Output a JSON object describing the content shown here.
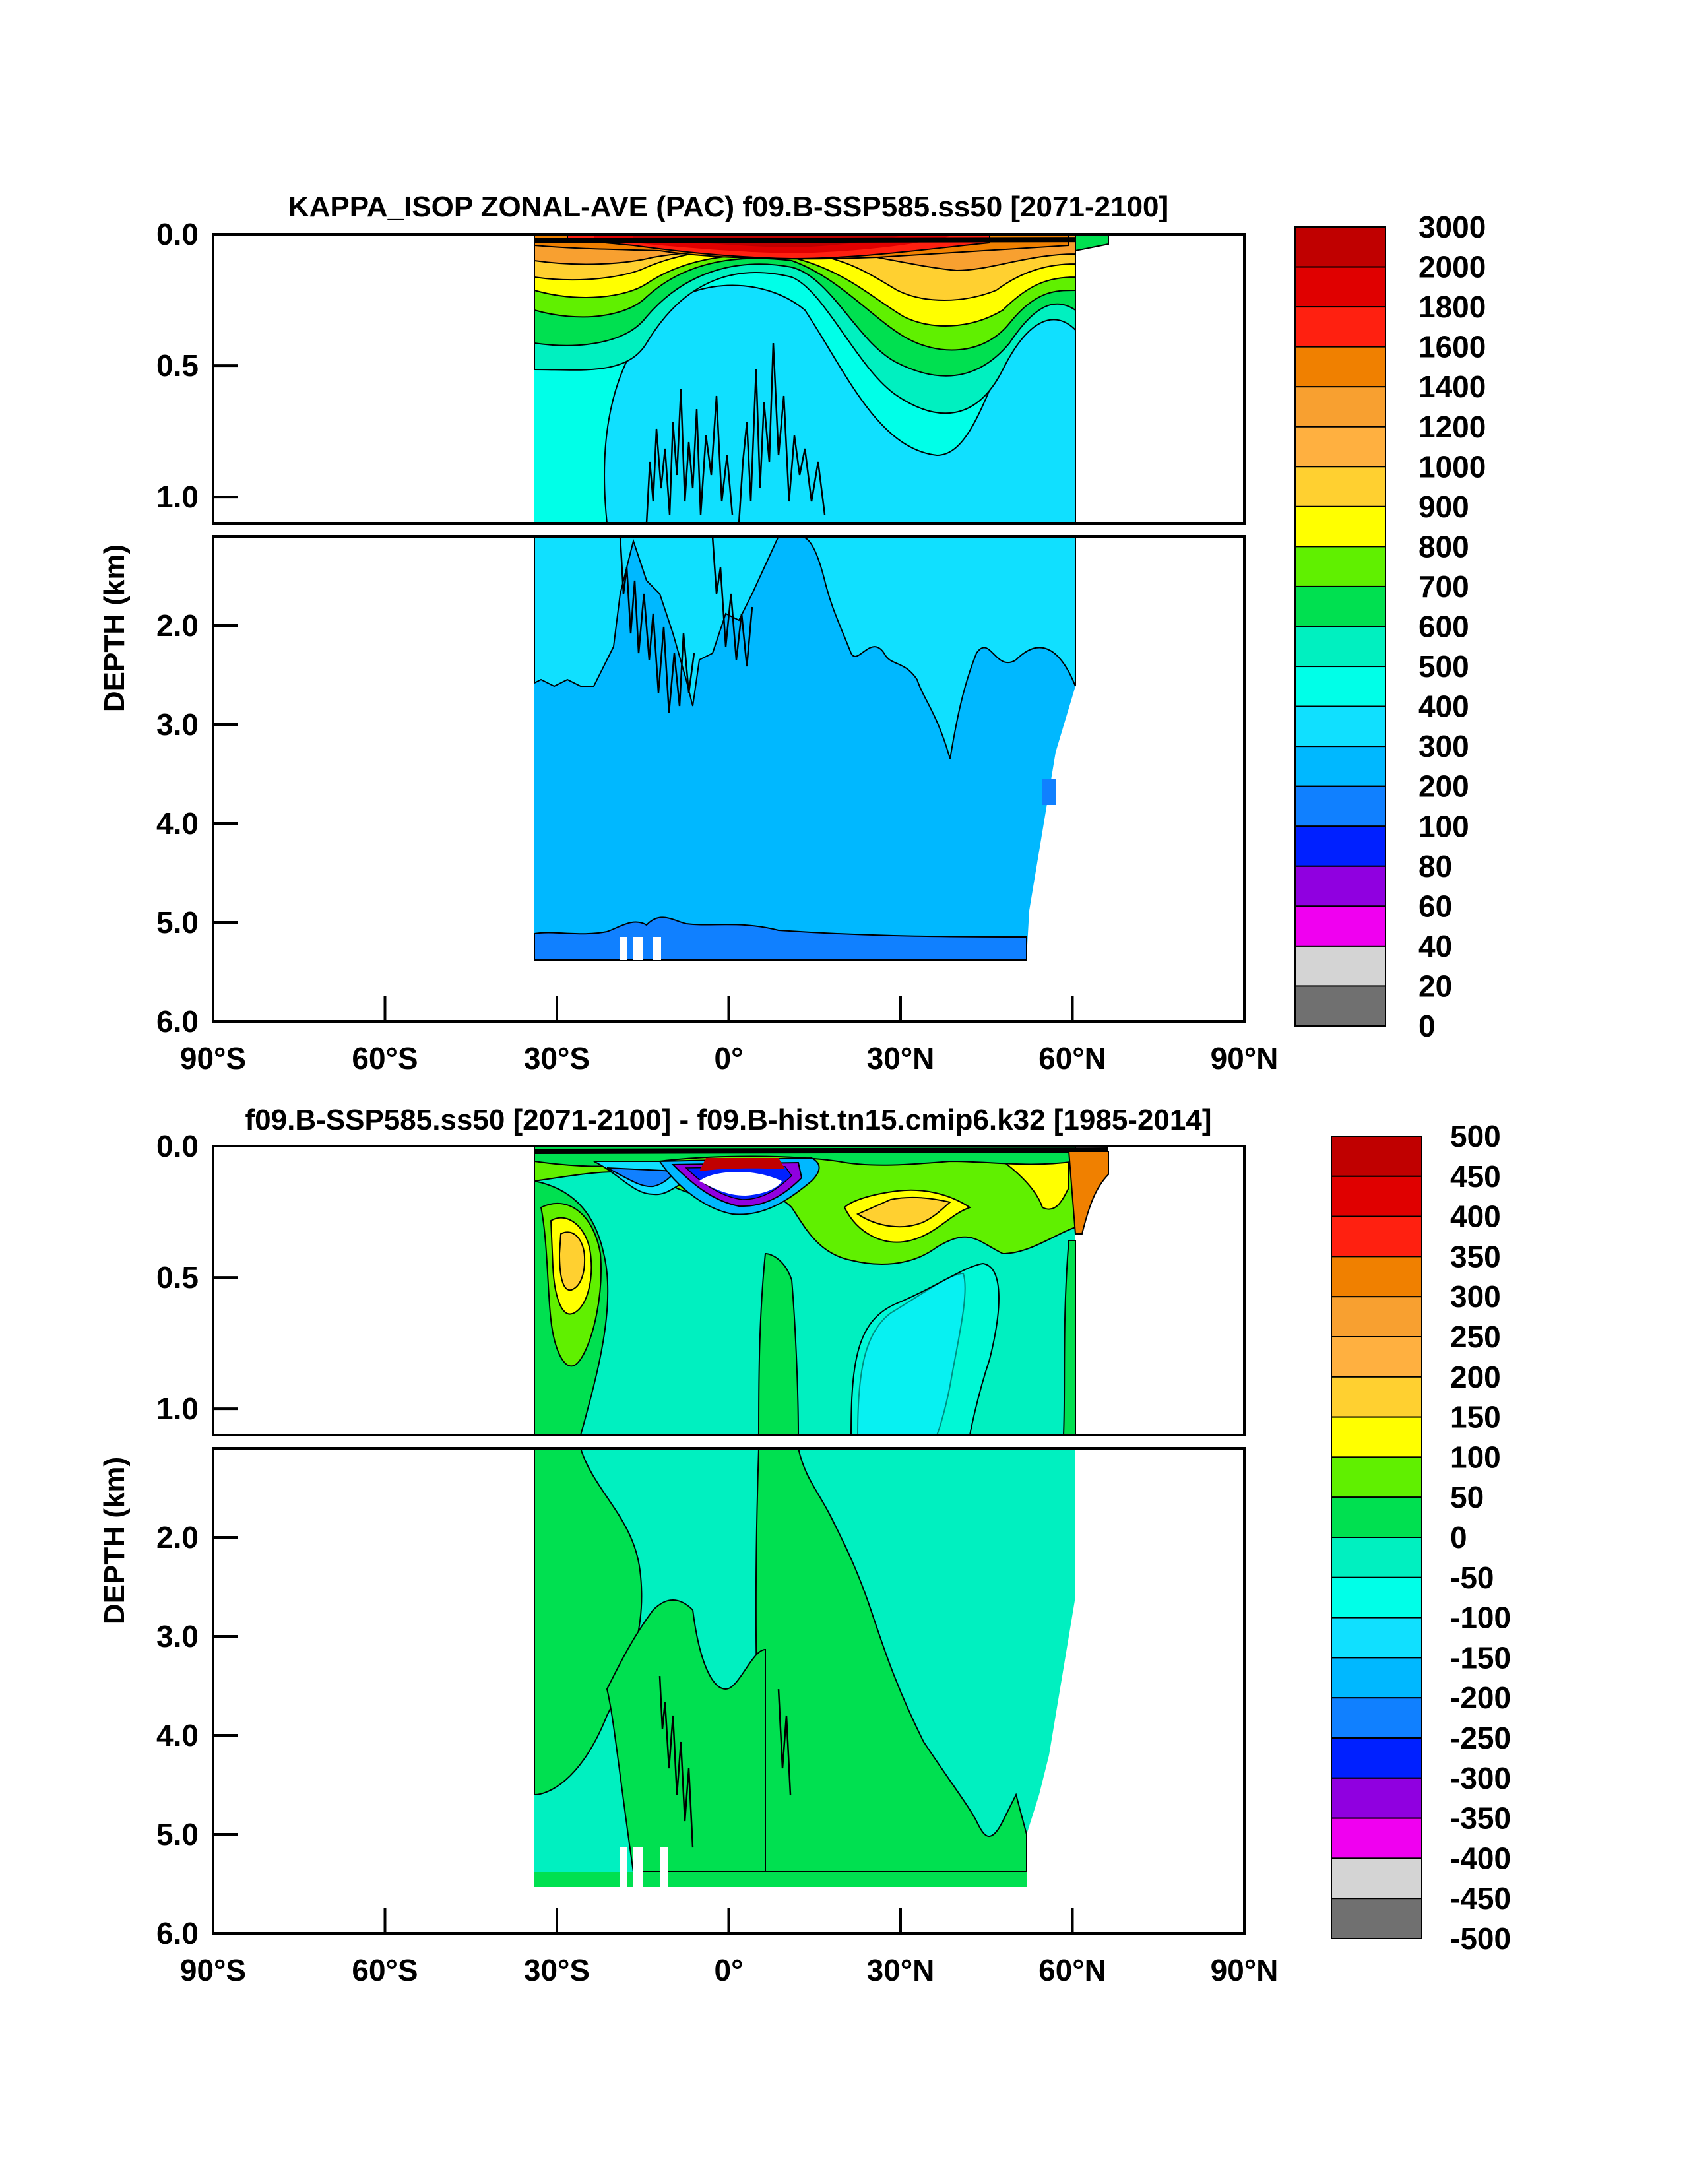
{
  "chart_data": [
    {
      "type": "heatmap",
      "title": "KAPPA_ISOP ZONAL-AVE (PAC) f09.B-SSP585.ss50 [2071-2100]",
      "ylabel": "DEPTH (km)",
      "xlabel": "",
      "x_ticks": [
        "90°S",
        "60°S",
        "30°S",
        "0°",
        "30°N",
        "60°N",
        "90°N"
      ],
      "y_ticks_upper": [
        "0.0",
        "0.5",
        "1.0"
      ],
      "y_ticks_lower": [
        "2.0",
        "3.0",
        "4.0",
        "5.0",
        "6.0"
      ],
      "xlim": [
        -90,
        90
      ],
      "ylim": [
        6.0,
        0.0
      ],
      "data_extent": {
        "lat": [
          -34,
          63
        ],
        "depth_km": [
          0,
          5.4
        ]
      },
      "colorbar_labels": [
        "3000",
        "2000",
        "1800",
        "1600",
        "1400",
        "1200",
        "1000",
        "900",
        "800",
        "700",
        "600",
        "500",
        "400",
        "300",
        "200",
        "100",
        "80",
        "60",
        "40",
        "20",
        "0"
      ],
      "colorbar_colors": [
        "#c00000",
        "#e00000",
        "#ff2010",
        "#f08000",
        "#f8a030",
        "#ffb040",
        "#ffd030",
        "#ffff00",
        "#60f000",
        "#00e050",
        "#00f0c0",
        "#00ffe8",
        "#10e0ff",
        "#00b8ff",
        "#1080ff",
        "#0020ff",
        "#9000e0",
        "#f000f0",
        "#d4d4d4",
        "#707070"
      ]
    },
    {
      "type": "heatmap",
      "title": "f09.B-SSP585.ss50 [2071-2100] - f09.B-hist.tn15.cmip6.k32 [1985-2014]",
      "ylabel": "DEPTH (km)",
      "xlabel": "",
      "x_ticks": [
        "90°S",
        "60°S",
        "30°S",
        "0°",
        "30°N",
        "60°N",
        "90°N"
      ],
      "y_ticks_upper": [
        "0.0",
        "0.5",
        "1.0"
      ],
      "y_ticks_lower": [
        "2.0",
        "3.0",
        "4.0",
        "5.0",
        "6.0"
      ],
      "xlim": [
        -90,
        90
      ],
      "ylim": [
        6.0,
        0.0
      ],
      "data_extent": {
        "lat": [
          -34,
          63
        ],
        "depth_km": [
          0,
          5.4
        ]
      },
      "colorbar_labels": [
        "500",
        "450",
        "400",
        "350",
        "300",
        "250",
        "200",
        "150",
        "100",
        "50",
        "0",
        "-50",
        "-100",
        "-150",
        "-200",
        "-250",
        "-300",
        "-350",
        "-400",
        "-450",
        "-500"
      ],
      "colorbar_colors": [
        "#c00000",
        "#e00000",
        "#ff2010",
        "#f08000",
        "#f8a030",
        "#ffb040",
        "#ffd030",
        "#ffff00",
        "#60f000",
        "#00e050",
        "#00f0c0",
        "#00ffe8",
        "#10e0ff",
        "#00b8ff",
        "#1080ff",
        "#0020ff",
        "#9000e0",
        "#f000f0",
        "#d4d4d4",
        "#707070"
      ]
    }
  ]
}
